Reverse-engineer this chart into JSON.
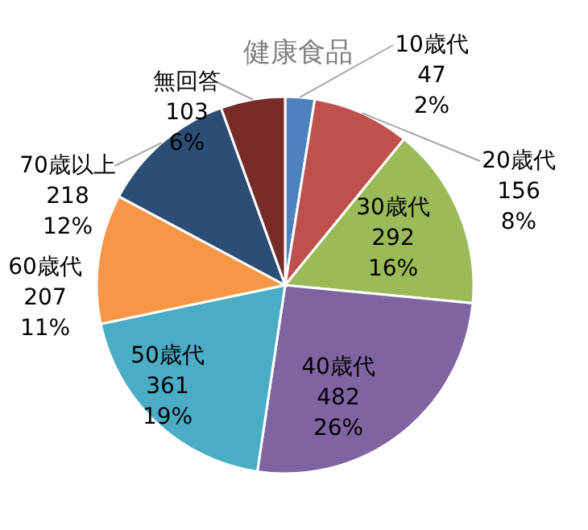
{
  "chart_data": {
    "type": "pie",
    "title": "健康食品",
    "categories": [
      "10歳代",
      "20歳代",
      "30歳代",
      "40歳代",
      "50歳代",
      "60歳代",
      "70歳以上",
      "無回答"
    ],
    "values": [
      47,
      156,
      292,
      482,
      361,
      207,
      218,
      103
    ],
    "value_labels": [
      "47\n2%",
      "156\n8%",
      "292\n16%",
      "482\n26%",
      "361\n19%",
      "207\n11%",
      "218\n12%",
      "103\n6%"
    ],
    "colors": [
      "#4f81bd",
      "#c0504d",
      "#9bbb59",
      "#8064a2",
      "#4bacc6",
      "#f79646",
      "#2c4d75",
      "#772c2a"
    ]
  }
}
